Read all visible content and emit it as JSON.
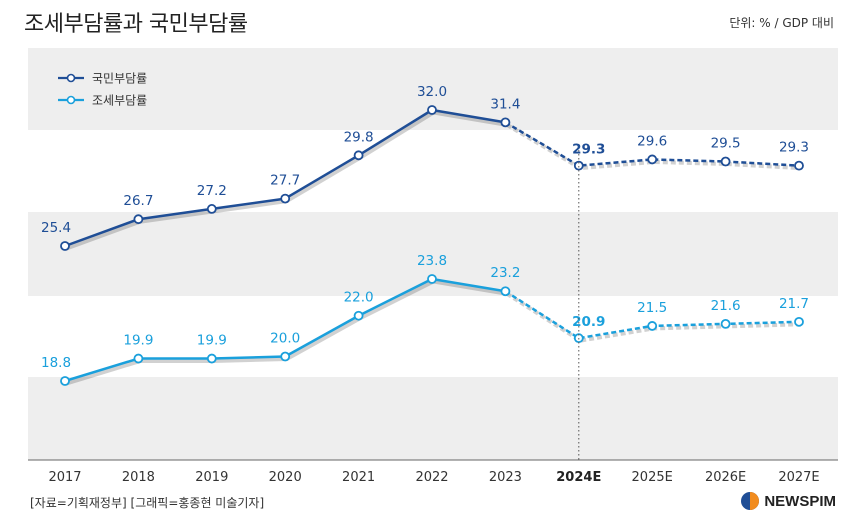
{
  "header": {
    "title": "조세부담률과 국민부담률",
    "unit": "단위: % / GDP 대비"
  },
  "footer": {
    "source": "[자료=기획재정부] [그래픽=홍종현 미술기자]",
    "logo_text": "NEWSPIM"
  },
  "colors": {
    "national_burden": "#1f4e96",
    "tax_burden": "#1aa0dc",
    "band": "#eeeeee",
    "brand_orange": "#f28c1e",
    "brand_blue": "#1f4e96"
  },
  "chart_data": {
    "type": "line",
    "x": [
      "2017",
      "2018",
      "2019",
      "2020",
      "2021",
      "2022",
      "2023",
      "2024E",
      "2025E",
      "2026E",
      "2027E"
    ],
    "series": [
      {
        "name": "국민부담률",
        "values": [
          25.4,
          26.7,
          27.2,
          27.7,
          29.8,
          32.0,
          31.4,
          29.3,
          29.6,
          29.5,
          29.3
        ],
        "labels": [
          "25.4",
          "26.7",
          "27.2",
          "27.7",
          "29.8",
          "32.0",
          "31.4",
          "29.3",
          "29.6",
          "29.5",
          "29.3"
        ]
      },
      {
        "name": "조세부담률",
        "values": [
          18.8,
          19.9,
          19.9,
          20.0,
          22.0,
          23.8,
          23.2,
          20.9,
          21.5,
          21.6,
          21.7
        ],
        "labels": [
          "18.8",
          "19.9",
          "19.9",
          "20.0",
          "22.0",
          "23.8",
          "23.2",
          "20.9",
          "21.5",
          "21.6",
          "21.7"
        ]
      }
    ],
    "projected_from": "2024E",
    "highlight": "2024E",
    "legend_position": "top-left",
    "grid": "horizontal bands"
  }
}
